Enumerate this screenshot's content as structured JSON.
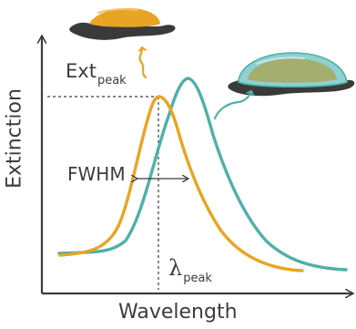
{
  "axis": {
    "y_label": "Extinction",
    "x_label": "Wavelength"
  },
  "annotations": {
    "ext_main": "Ext",
    "ext_sub": "peak",
    "fwhm": "FWHM",
    "lambda_main": "λ",
    "lambda_sub": "peak"
  },
  "colors": {
    "spectrum_1": "#e8a424",
    "spectrum_2": "#4fb0a8",
    "axis": "#3c3c3c",
    "substrate": "#3a3a3a"
  },
  "icons": {
    "left_particle": "gold-nanoparticle-on-substrate-icon",
    "right_particle": "shelled-nanoparticle-on-substrate-icon"
  }
}
